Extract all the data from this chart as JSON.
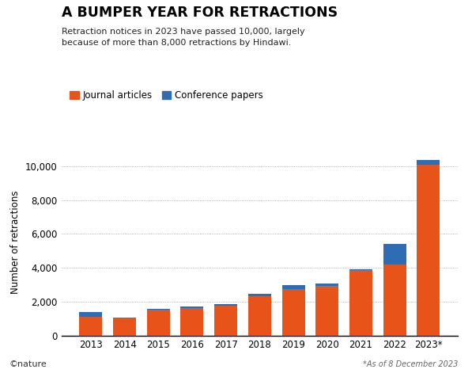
{
  "years": [
    "2013",
    "2014",
    "2015",
    "2016",
    "2017",
    "2018",
    "2019",
    "2020",
    "2021",
    "2022",
    "2023*"
  ],
  "journal_articles": [
    1100,
    1050,
    1530,
    1650,
    1750,
    2320,
    2750,
    2950,
    3850,
    4200,
    10100
  ],
  "conference_papers": [
    280,
    40,
    55,
    80,
    110,
    160,
    220,
    110,
    60,
    1200,
    250
  ],
  "color_journal": "#E8531A",
  "color_conference": "#2E6DB4",
  "title_main": "A BUMPER YEAR FOR RETRACTIONS",
  "title_sub": "Retraction notices in 2023 have passed 10,000, largely\nbecause of more than 8,000 retractions by Hindawi.",
  "ylabel": "Number of retractions",
  "ylim": [
    0,
    11000
  ],
  "yticks": [
    0,
    2000,
    4000,
    6000,
    8000,
    10000
  ],
  "legend_labels": [
    "Journal articles",
    "Conference papers"
  ],
  "footnote": "*As of 8 December 2023",
  "nature_credit": "©nature",
  "bg_color": "#FFFFFF",
  "grid_color": "#999999"
}
